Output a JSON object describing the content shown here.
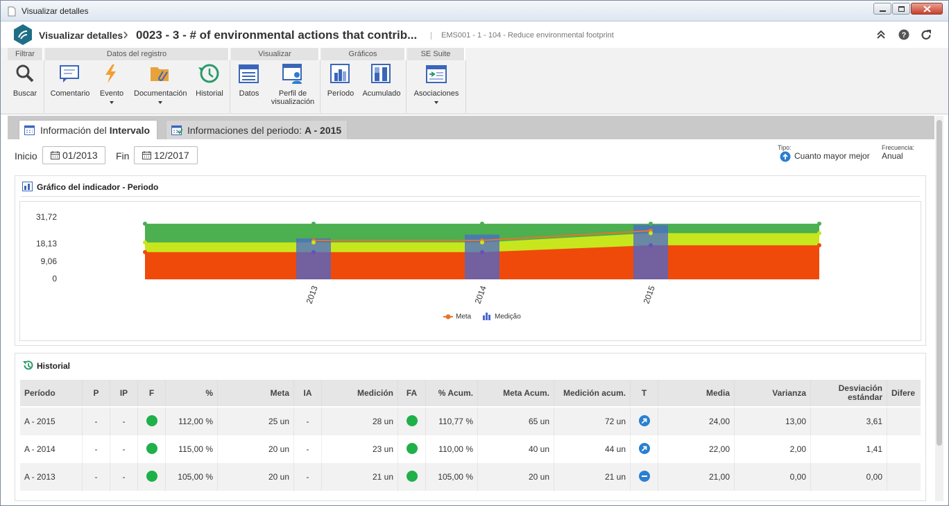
{
  "window": {
    "title": "Visualizar detalles"
  },
  "header": {
    "breadcrumb": "Visualizar detalles",
    "title": "0023 - 3 - # of environmental actions that contrib...",
    "subtitle": "EMS001 - 1 - 104 - Reduce environmental footprint"
  },
  "toolbar": {
    "groups": [
      {
        "label": "Filtrar",
        "items": [
          "Buscar"
        ]
      },
      {
        "label": "Datos del registro",
        "items": [
          "Comentario",
          "Evento",
          "Documentación",
          "Historial"
        ]
      },
      {
        "label": "Visualizar",
        "items": [
          "Datos",
          "Perfil de visualización"
        ]
      },
      {
        "label": "Gráficos",
        "items": [
          "Período",
          "Acumulado"
        ]
      },
      {
        "label": "SE Suite",
        "items": [
          "Asociaciones"
        ]
      }
    ]
  },
  "tabs": [
    {
      "text": "Información del",
      "bold": "Intervalo"
    },
    {
      "text": "Informaciones del periodo:",
      "bold": "A - 2015"
    }
  ],
  "filters": {
    "start_label": "Inicio",
    "start": "01/2013",
    "end_label": "Fin",
    "end": "12/2017",
    "type_label": "Tipo:",
    "type": "Cuanto mayor mejor",
    "freq_label": "Frecuencia:",
    "freq": "Anual"
  },
  "chart_panel_title": "Gráfico del indicador - Periodo",
  "chart_data": {
    "type": "combo",
    "categories": [
      null,
      "2013",
      "2014",
      "2015",
      null
    ],
    "ylim": [
      0,
      31.72
    ],
    "yticks": [
      0,
      {
        "value": 9.06,
        "label": "9,06"
      },
      {
        "value": 18.13,
        "label": "18,13"
      },
      {
        "value": 31.72,
        "label": "31,72"
      }
    ],
    "bands": [
      {
        "color": "#4caf50",
        "values": [
          28.6,
          28.6,
          28.6,
          28.6,
          28.6
        ]
      },
      {
        "color": "#c8e61e",
        "values": [
          19,
          19,
          19,
          23.75,
          23.75
        ]
      },
      {
        "color": "#f04a0a",
        "values": [
          14,
          14,
          14,
          17.5,
          17.5
        ]
      }
    ],
    "series": [
      {
        "name": "Medição",
        "type": "bar",
        "color": "#4a68d0",
        "values": [
          null,
          21,
          23,
          28,
          null
        ]
      },
      {
        "name": "Meta",
        "type": "line",
        "color": "#e8742a",
        "values": [
          null,
          20,
          20,
          25,
          null
        ]
      }
    ],
    "grid": false
  },
  "history": {
    "title": "Historial",
    "columns": [
      {
        "key": "period",
        "label": "Período",
        "align": "left"
      },
      {
        "key": "p",
        "label": "P",
        "align": "center"
      },
      {
        "key": "ip",
        "label": "IP",
        "align": "center"
      },
      {
        "key": "f",
        "label": "F",
        "align": "center",
        "icon": true
      },
      {
        "key": "pct",
        "label": "%",
        "align": "right"
      },
      {
        "key": "meta",
        "label": "Meta",
        "align": "right"
      },
      {
        "key": "ia",
        "label": "IA",
        "align": "center"
      },
      {
        "key": "med",
        "label": "Medición",
        "align": "right"
      },
      {
        "key": "fa",
        "label": "FA",
        "align": "center",
        "icon": true
      },
      {
        "key": "pacum",
        "label": "% Acum.",
        "align": "right"
      },
      {
        "key": "macum",
        "label": "Meta Acum.",
        "align": "right"
      },
      {
        "key": "medacum",
        "label": "Medición acum.",
        "align": "right"
      },
      {
        "key": "t",
        "label": "T",
        "align": "center",
        "icon": true
      },
      {
        "key": "media",
        "label": "Media",
        "align": "right"
      },
      {
        "key": "var",
        "label": "Varianza",
        "align": "right"
      },
      {
        "key": "desv",
        "label": "Desviación estándar",
        "align": "right"
      },
      {
        "key": "dif",
        "label": "Difere",
        "align": "left"
      }
    ],
    "rows": [
      {
        "period": "A - 2015",
        "p": "-",
        "ip": "-",
        "f": "green",
        "pct": "112,00 %",
        "meta": "25 un",
        "ia": "-",
        "med": "28 un",
        "fa": "green",
        "pacum": "110,77 %",
        "macum": "65 un",
        "medacum": "72 un",
        "t": "up",
        "media": "24,00",
        "var": "13,00",
        "desv": "3,61"
      },
      {
        "period": "A - 2014",
        "p": "-",
        "ip": "-",
        "f": "green",
        "pct": "115,00 %",
        "meta": "20 un",
        "ia": "-",
        "med": "23 un",
        "fa": "green",
        "pacum": "110,00 %",
        "macum": "40 un",
        "medacum": "44 un",
        "t": "up",
        "media": "22,00",
        "var": "2,00",
        "desv": "1,41"
      },
      {
        "period": "A - 2013",
        "p": "-",
        "ip": "-",
        "f": "green",
        "pct": "105,00 %",
        "meta": "20 un",
        "ia": "-",
        "med": "21 un",
        "fa": "green",
        "pacum": "105,00 %",
        "macum": "20 un",
        "medacum": "21 un",
        "t": "flat",
        "media": "21,00",
        "var": "0,00",
        "desv": "0,00"
      }
    ]
  }
}
